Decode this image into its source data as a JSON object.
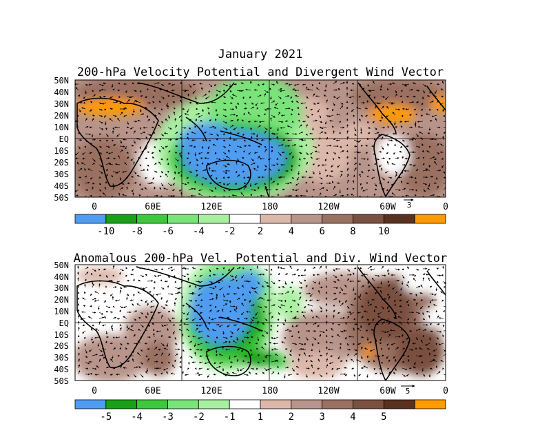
{
  "figure": {
    "title": "January 2021",
    "subtitle": "200-hPa Velocity Potential and Divergent Wind Vector",
    "anomaly_title": "Anomalous 200-hPa Vel. Potential and Div. Wind Vector"
  },
  "axes": {
    "lat_labels": [
      "50N",
      "40N",
      "30N",
      "20N",
      "10N",
      "EQ",
      "10S",
      "20S",
      "30S",
      "40S",
      "50S"
    ],
    "lon_labels": [
      "0",
      "60E",
      "120E",
      "180",
      "120W",
      "60W",
      "0"
    ]
  },
  "panels": [
    {
      "id": "total",
      "ref_vector_label": "3",
      "colorbar": {
        "colors": [
          "#4f9cf0",
          "#18a018",
          "#3ec83e",
          "#7ae37a",
          "#a8f0a0",
          "#ffffff",
          "#dcb8aa",
          "#b8948a",
          "#9a7060",
          "#7a5040",
          "#5a3020",
          "#ff9a00"
        ],
        "labels": [
          "-10",
          "-8",
          "-6",
          "-4",
          "-2",
          "2",
          "4",
          "6",
          "8",
          "10"
        ]
      }
    },
    {
      "id": "anomaly",
      "ref_vector_label": "5",
      "colorbar": {
        "colors": [
          "#4f9cf0",
          "#18a018",
          "#3ec83e",
          "#7ae37a",
          "#a8f0a0",
          "#ffffff",
          "#dcb8aa",
          "#b8948a",
          "#9a7060",
          "#7a5040",
          "#5a3020",
          "#ff9a00"
        ],
        "labels": [
          "-5",
          "-4",
          "-3",
          "-2",
          "-1",
          "1",
          "2",
          "3",
          "4",
          "5"
        ]
      }
    }
  ]
}
